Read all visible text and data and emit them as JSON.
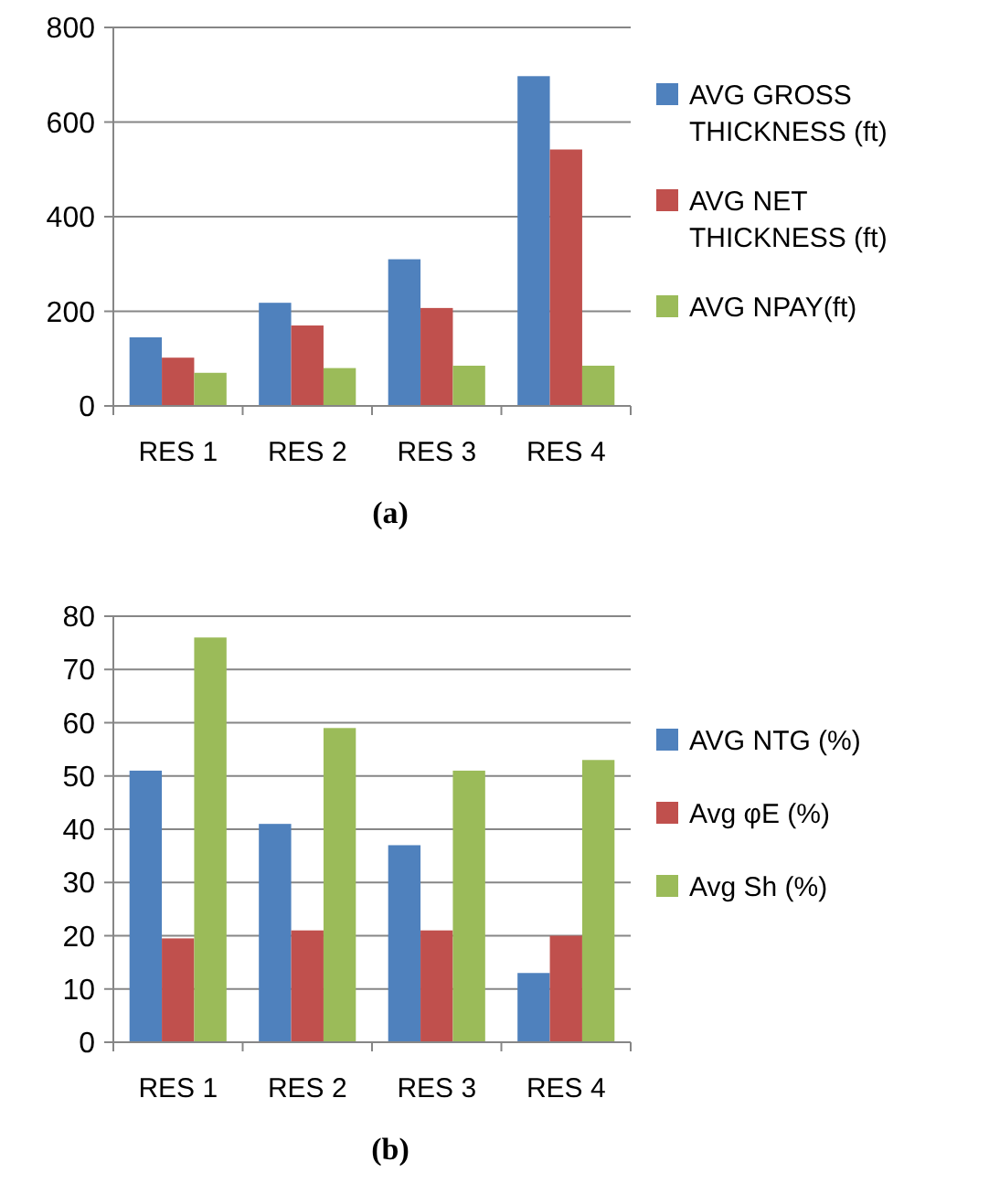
{
  "chart_data": [
    {
      "type": "bar",
      "title": "(a)",
      "categories": [
        "RES 1",
        "RES 2",
        "RES 3",
        "RES 4"
      ],
      "series": [
        {
          "name": "AVG GROSS THICKNESS (ft)",
          "color": "#4f81bd",
          "values": [
            145,
            218,
            310,
            697
          ]
        },
        {
          "name": "AVG NET THICKNESS (ft)",
          "color": "#c0504d",
          "values": [
            102,
            170,
            207,
            542
          ]
        },
        {
          "name": "AVG NPAY(ft)",
          "color": "#9bbb59",
          "values": [
            70,
            80,
            85,
            85
          ]
        }
      ],
      "ylim": [
        0,
        800
      ],
      "yticks": [
        0,
        200,
        400,
        600,
        800
      ],
      "grid": "y",
      "legend": "right"
    },
    {
      "type": "bar",
      "title": "(b)",
      "categories": [
        "RES 1",
        "RES 2",
        "RES 3",
        "RES 4"
      ],
      "series": [
        {
          "name": "AVG NTG (%)",
          "color": "#4f81bd",
          "values": [
            51,
            41,
            37,
            13
          ]
        },
        {
          "name": "Avg φE (%)",
          "color": "#c0504d",
          "values": [
            19.5,
            21,
            21,
            20
          ]
        },
        {
          "name": "Avg Sh (%)",
          "color": "#9bbb59",
          "values": [
            76,
            59,
            51,
            53
          ]
        }
      ],
      "ylim": [
        0,
        80
      ],
      "yticks": [
        0,
        10,
        20,
        30,
        40,
        50,
        60,
        70,
        80
      ],
      "grid": "y",
      "legend": "right"
    }
  ]
}
